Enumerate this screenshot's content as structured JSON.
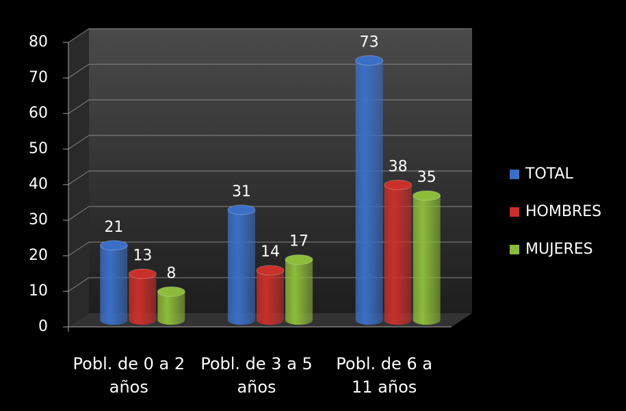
{
  "chart_data": {
    "type": "bar",
    "categories": [
      "Pobl. de 0 a 2 años",
      "Pobl. de 3 a 5 años",
      "Pobl. de 6 a 11 años"
    ],
    "series": [
      {
        "name": "TOTAL",
        "color": "#3b6fc6",
        "values": [
          21,
          31,
          73
        ]
      },
      {
        "name": "HOMBRES",
        "color": "#c9302b",
        "values": [
          13,
          14,
          38
        ]
      },
      {
        "name": "MUJERES",
        "color": "#8dbb3a",
        "values": [
          8,
          17,
          35
        ]
      }
    ],
    "ylim": [
      0,
      80
    ],
    "yticks": [
      0,
      10,
      20,
      30,
      40,
      50,
      60,
      70,
      80
    ],
    "grid": true,
    "legend": "right"
  }
}
